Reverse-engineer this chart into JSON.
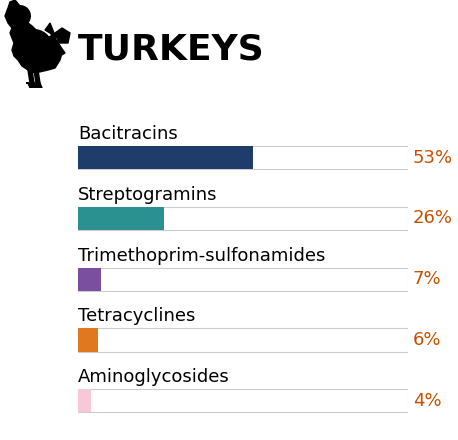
{
  "title": "TURKEYS",
  "categories": [
    "Bacitracins",
    "Streptogramins",
    "Trimethoprim-sulfonamides",
    "Tetracyclines",
    "Aminoglycosides"
  ],
  "values": [
    53,
    26,
    7,
    6,
    4
  ],
  "labels": [
    "53%",
    "26%",
    "7%",
    "6%",
    "4%"
  ],
  "bar_colors": [
    "#1f3d6b",
    "#2a9090",
    "#7b4fa0",
    "#e07820",
    "#f8c8d8"
  ],
  "bar_bg_color": "#ffffff",
  "bar_edge_color": "#cccccc",
  "pct_color": "#c85000",
  "cat_color": "#000000",
  "title_color": "#000000",
  "max_value": 100,
  "background_color": "#ffffff",
  "bar_height": 0.38,
  "pct_fontsize": 13,
  "title_fontsize": 26,
  "category_fontsize": 13
}
